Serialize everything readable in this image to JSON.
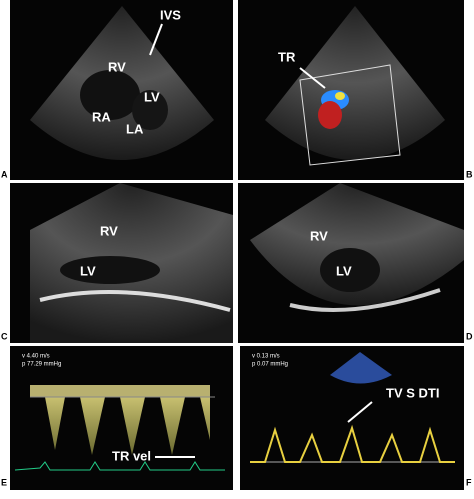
{
  "panels": [
    {
      "label": "A",
      "annotations": [
        "IVS",
        "RV",
        "LV",
        "RA",
        "LA"
      ]
    },
    {
      "label": "B",
      "annotations": [
        "TR"
      ]
    },
    {
      "label": "C",
      "annotations": [
        "RV",
        "LV"
      ]
    },
    {
      "label": "D",
      "annotations": [
        "RV",
        "LV"
      ]
    },
    {
      "label": "E",
      "annotations": [
        "TR vel"
      ],
      "readouts": [
        "v 4.40 m/s",
        "p 77.29 mmHg"
      ]
    },
    {
      "label": "F",
      "annotations": [
        "TV S DTI"
      ],
      "readouts": [
        "v 0.13 m/s",
        "p 0.07 mmHg"
      ]
    }
  ]
}
